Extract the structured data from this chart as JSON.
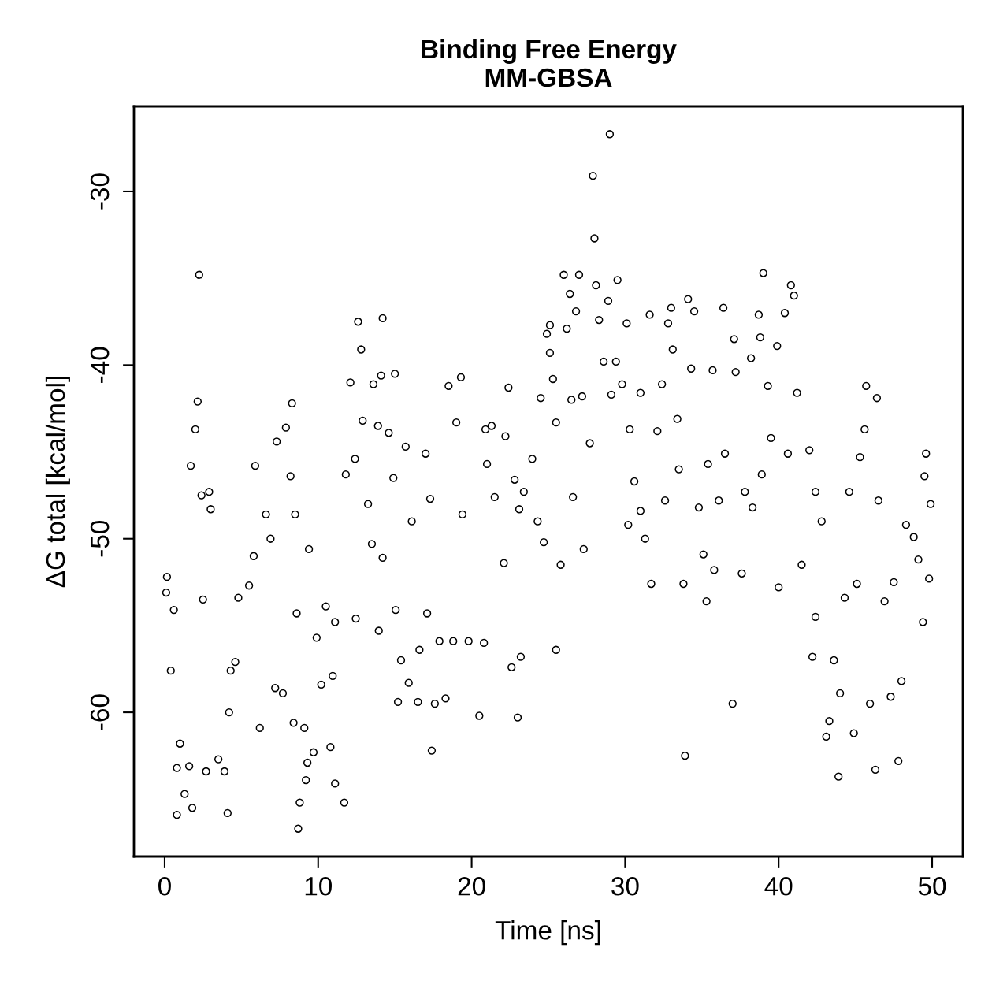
{
  "chart_data": {
    "type": "scatter",
    "title": "Binding Free Energy\nMM-GBSA",
    "xlabel": "Time [ns]",
    "ylabel": "ΔG total [kcal/mol]",
    "xlim": [
      -2,
      52
    ],
    "xticks": [
      0,
      10,
      20,
      30,
      40,
      50
    ],
    "ylim": [
      -68.3,
      -25.1
    ],
    "yticks": [
      -60,
      -50,
      -40,
      -30
    ],
    "grid": false,
    "marker": "circle",
    "series": [
      {
        "color": "#000000",
        "x": [
          0.15,
          0.1,
          0.4,
          0.6,
          0.8,
          0.8,
          1.0,
          1.3,
          1.8,
          1.6,
          2.25,
          2.15,
          2.0,
          1.7,
          2.4,
          2.9,
          3.0,
          2.5,
          2.7,
          3.5,
          4.1,
          3.9,
          4.2,
          4.3,
          4.8,
          4.6,
          5.5,
          5.8,
          5.9,
          6.2,
          6.6,
          6.9,
          7.3,
          7.2,
          7.7,
          7.9,
          8.3,
          8.2,
          8.5,
          8.6,
          8.4,
          8.7,
          8.8,
          9.1,
          9.2,
          9.3,
          9.4,
          9.7,
          9.9,
          10.2,
          10.5,
          10.8,
          11.1,
          10.95,
          11.1,
          11.7,
          11.8,
          12.1,
          12.4,
          12.45,
          12.6,
          12.8,
          12.9,
          13.25,
          13.5,
          13.6,
          13.9,
          13.95,
          14.2,
          14.1,
          14.2,
          14.6,
          14.9,
          15.0,
          15.05,
          15.2,
          15.4,
          15.7,
          15.9,
          16.1,
          16.5,
          16.6,
          17.0,
          17.1,
          17.3,
          17.4,
          17.6,
          19.3,
          17.9,
          18.5,
          18.3,
          18.8,
          19.0,
          19.4,
          19.8,
          20.5,
          20.8,
          20.9,
          21.0,
          21.3,
          21.5,
          22.1,
          22.2,
          22.4,
          22.6,
          22.8,
          23.0,
          23.1,
          23.2,
          23.4,
          23.95,
          24.3,
          24.5,
          24.7,
          24.9,
          25.1,
          25.1,
          25.3,
          25.5,
          25.5,
          25.8,
          26.0,
          26.2,
          26.4,
          26.5,
          26.6,
          26.8,
          27.0,
          27.2,
          27.3,
          27.7,
          27.9,
          28.0,
          28.1,
          28.3,
          28.6,
          28.9,
          29.0,
          29.1,
          29.4,
          29.5,
          29.8,
          30.1,
          30.3,
          30.2,
          30.6,
          31.0,
          31.0,
          31.3,
          31.6,
          31.7,
          32.1,
          32.4,
          32.6,
          32.8,
          33.0,
          33.1,
          33.4,
          33.5,
          33.8,
          33.9,
          34.1,
          34.3,
          34.5,
          34.8,
          35.1,
          35.3,
          35.4,
          35.7,
          35.8,
          36.1,
          36.4,
          36.5,
          37.0,
          37.1,
          37.2,
          37.6,
          37.8,
          38.2,
          38.3,
          38.7,
          38.8,
          39.0,
          38.9,
          39.3,
          39.5,
          39.9,
          40.0,
          40.4,
          40.6,
          40.8,
          41.0,
          41.2,
          41.5,
          42.0,
          42.2,
          42.4,
          42.4,
          42.8,
          43.1,
          43.3,
          43.6,
          43.9,
          44.0,
          44.3,
          44.6,
          44.9,
          45.1,
          45.3,
          45.6,
          45.7,
          45.95,
          46.3,
          46.4,
          46.5,
          46.9,
          47.3,
          47.5,
          47.8,
          48.0,
          48.3,
          48.8,
          49.1,
          49.4,
          49.5,
          49.6,
          49.8,
          49.9
        ],
        "values": [
          -52.2,
          -53.1,
          -57.6,
          -54.1,
          -65.9,
          -63.2,
          -61.8,
          -64.7,
          -65.5,
          -63.1,
          -34.8,
          -42.1,
          -43.7,
          -45.8,
          -47.5,
          -47.3,
          -48.3,
          -53.5,
          -63.4,
          -62.7,
          -65.8,
          -63.4,
          -60.0,
          -57.6,
          -53.4,
          -57.1,
          -52.7,
          -51.0,
          -45.8,
          -60.9,
          -48.6,
          -50.0,
          -44.4,
          -58.6,
          -58.9,
          -43.6,
          -42.2,
          -46.4,
          -48.6,
          -54.3,
          -60.6,
          -66.7,
          -65.2,
          -60.9,
          -63.9,
          -62.9,
          -50.6,
          -62.3,
          -55.7,
          -58.4,
          -53.9,
          -62.0,
          -64.1,
          -57.9,
          -54.8,
          -65.2,
          -46.3,
          -41.0,
          -45.4,
          -54.6,
          -37.5,
          -39.1,
          -43.2,
          -48.0,
          -50.3,
          -41.1,
          -43.5,
          -55.3,
          -37.3,
          -40.6,
          -51.1,
          -43.9,
          -46.5,
          -40.5,
          -54.1,
          -59.4,
          -57.0,
          -44.7,
          -58.3,
          -49.0,
          -59.4,
          -56.4,
          -45.1,
          -54.3,
          -47.7,
          -62.2,
          -59.5,
          -40.7,
          -55.9,
          -41.2,
          -59.2,
          -55.9,
          -43.3,
          -48.6,
          -55.9,
          -60.2,
          -56.0,
          -43.7,
          -45.7,
          -43.5,
          -47.6,
          -51.4,
          -44.1,
          -41.3,
          -57.4,
          -46.6,
          -60.3,
          -48.3,
          -56.8,
          -47.3,
          -45.4,
          -49.0,
          -41.9,
          -50.2,
          -38.2,
          -37.7,
          -39.3,
          -40.8,
          -43.3,
          -56.4,
          -51.5,
          -34.8,
          -37.9,
          -35.9,
          -42.0,
          -47.6,
          -36.9,
          -34.8,
          -41.8,
          -50.6,
          -44.5,
          -29.1,
          -32.7,
          -35.4,
          -37.4,
          -39.8,
          -36.3,
          -26.7,
          -41.7,
          -39.8,
          -35.1,
          -41.1,
          -37.6,
          -43.7,
          -49.2,
          -46.7,
          -48.4,
          -41.6,
          -50.0,
          -37.1,
          -52.6,
          -43.8,
          -41.1,
          -47.8,
          -37.6,
          -36.7,
          -39.1,
          -43.1,
          -46.0,
          -52.6,
          -62.5,
          -36.2,
          -40.2,
          -36.9,
          -48.2,
          -50.9,
          -53.6,
          -45.7,
          -40.3,
          -51.8,
          -47.8,
          -36.7,
          -45.1,
          -59.5,
          -38.5,
          -40.4,
          -52.0,
          -47.3,
          -39.6,
          -48.2,
          -37.1,
          -38.4,
          -34.7,
          -46.3,
          -41.2,
          -44.2,
          -38.9,
          -52.8,
          -37.0,
          -45.1,
          -35.4,
          -36.0,
          -41.6,
          -51.5,
          -44.9,
          -56.8,
          -47.3,
          -54.5,
          -49.0,
          -61.4,
          -60.5,
          -57.0,
          -63.7,
          -58.9,
          -53.4,
          -47.3,
          -61.2,
          -52.6,
          -45.3,
          -43.7,
          -41.2,
          -59.5,
          -63.3,
          -41.9,
          -47.8,
          -53.6,
          -59.1,
          -52.5,
          -62.8,
          -58.2,
          -49.2,
          -49.9,
          -51.2,
          -54.8,
          -46.4,
          -45.1,
          -52.3,
          -48.0
        ]
      }
    ]
  }
}
